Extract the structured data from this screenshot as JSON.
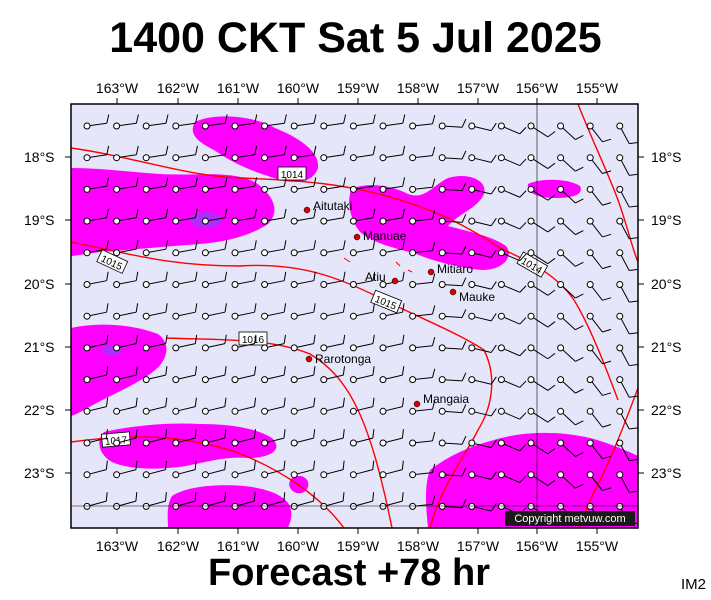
{
  "header": {
    "title": "1400 CKT Sat 5 Jul 2025"
  },
  "footer": {
    "forecast": "Forecast +78 hr",
    "code": "IM2"
  },
  "map": {
    "copyright": "Copyright metvuw.com",
    "lon_labels": [
      "163°W",
      "162°W",
      "161°W",
      "160°W",
      "159°W",
      "158°W",
      "157°W",
      "156°W",
      "155°W"
    ],
    "lat_labels": [
      "18°S",
      "19°S",
      "20°S",
      "21°S",
      "22°S",
      "23°S"
    ],
    "places": [
      {
        "name": "Aitutaki"
      },
      {
        "name": "Manuae"
      },
      {
        "name": "Atiu"
      },
      {
        "name": "Mitiaro"
      },
      {
        "name": "Mauke"
      },
      {
        "name": "Rarotonga"
      },
      {
        "name": "Mangaia"
      }
    ],
    "isobars": [
      "1014",
      "1015",
      "1016",
      "1017"
    ],
    "colors": {
      "background": "#e6e6fa",
      "precip": "#ff00ff",
      "precip_heavy": "#9933ff",
      "isobar": "#ff0000",
      "land": "#ff0000"
    }
  }
}
